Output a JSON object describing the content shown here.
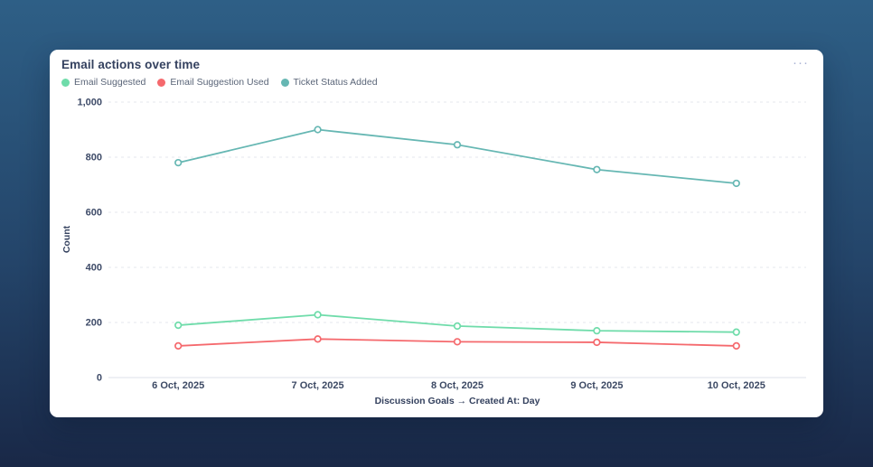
{
  "page": {
    "background_top_color": "#2E5F86",
    "background_bottom_color": "#192847"
  },
  "card": {
    "title": "Email actions over time",
    "menu_icon": "ellipsis-horizontal",
    "menu_glyph": "···"
  },
  "chart_data": {
    "type": "line",
    "x": [
      "6 Oct, 2025",
      "7 Oct, 2025",
      "8 Oct, 2025",
      "9 Oct, 2025",
      "10 Oct, 2025"
    ],
    "series": [
      {
        "name": "Email Suggested",
        "color": "#6FDCAA",
        "values": [
          190,
          228,
          187,
          170,
          165
        ]
      },
      {
        "name": "Email Suggestion Used",
        "color": "#F5696D",
        "values": [
          115,
          140,
          130,
          128,
          115
        ]
      },
      {
        "name": "Ticket Status Added",
        "color": "#66B7B3",
        "values": [
          780,
          900,
          845,
          755,
          705
        ]
      }
    ],
    "title": "Email actions over time",
    "xlabel": "Discussion Goals → Created At: Day",
    "ylabel": "Count",
    "ylim": [
      0,
      1000
    ],
    "yticks": [
      0,
      200,
      400,
      600,
      800,
      1000
    ],
    "ytick_labels": [
      "0",
      "200",
      "400",
      "600",
      "800",
      "1,000"
    ],
    "grid": "horizontal-dashed",
    "legend_position": "top-left",
    "marker": "open-circle",
    "gridline_color": "#E4E7EE",
    "axis_line_color": "#DDE1EA"
  }
}
